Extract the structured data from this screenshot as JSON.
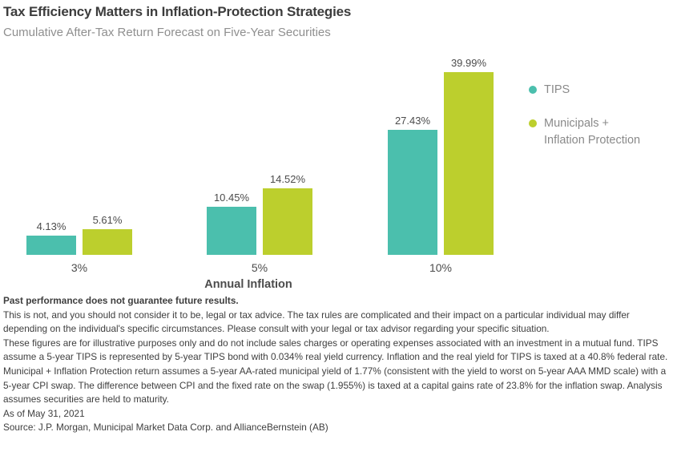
{
  "chart_data": {
    "type": "bar",
    "title": "Tax Efficiency Matters in Inflation-Protection Strategies",
    "subtitle": "Cumulative After-Tax Return Forecast on Five-Year Securities",
    "categories": [
      "3%",
      "5%",
      "10%"
    ],
    "series": [
      {
        "name": "TIPS",
        "legend_label": "TIPS",
        "color": "#4BBFAD",
        "values": [
          4.13,
          10.45,
          27.43
        ],
        "value_labels": [
          "4.13%",
          "10.45%",
          "27.43%"
        ]
      },
      {
        "name": "Municipals + Inflation Protection",
        "legend_label": "Municipals +\nInflation Protection",
        "color": "#BCCF2D",
        "values": [
          5.61,
          14.52,
          39.99
        ],
        "value_labels": [
          "5.61%",
          "14.52%",
          "39.99%"
        ]
      }
    ],
    "xlabel": "Annual Inflation",
    "ylabel": "",
    "ylim": [
      0,
      42
    ],
    "grid": false,
    "legend_position": "right"
  },
  "footer": {
    "p1": "Past performance does not guarantee future results.",
    "p2": "This is not, and you should not consider it to be, legal or tax advice. The tax rules are complicated and their impact on a particular individual may differ depending on the individual's specific circumstances. Please consult with your legal or tax advisor regarding your specific situation.",
    "p3": "These figures are for illustrative purposes only and do not include sales charges or operating expenses associated with an investment in a mutual fund. TIPS assume a 5-year TIPS is represented by 5-year TIPS bond with 0.034% real yield currency.  Inflation and the real yield for TIPS is taxed at a 40.8% federal rate. Municipal + Inflation Protection return assumes a 5-year AA-rated municipal yield of 1.77% (consistent with the yield to worst on 5-year AAA MMD scale) with a 5-year CPI swap. The difference between CPI and the fixed rate on the swap (1.955%) is taxed at a capital gains rate of 23.8% for the inflation swap.  Analysis assumes securities are held to maturity.",
    "p4": "As of May 31, 2021",
    "p5": "Source: J.P. Morgan, Municipal Market Data Corp. and AllianceBernstein (AB)"
  }
}
